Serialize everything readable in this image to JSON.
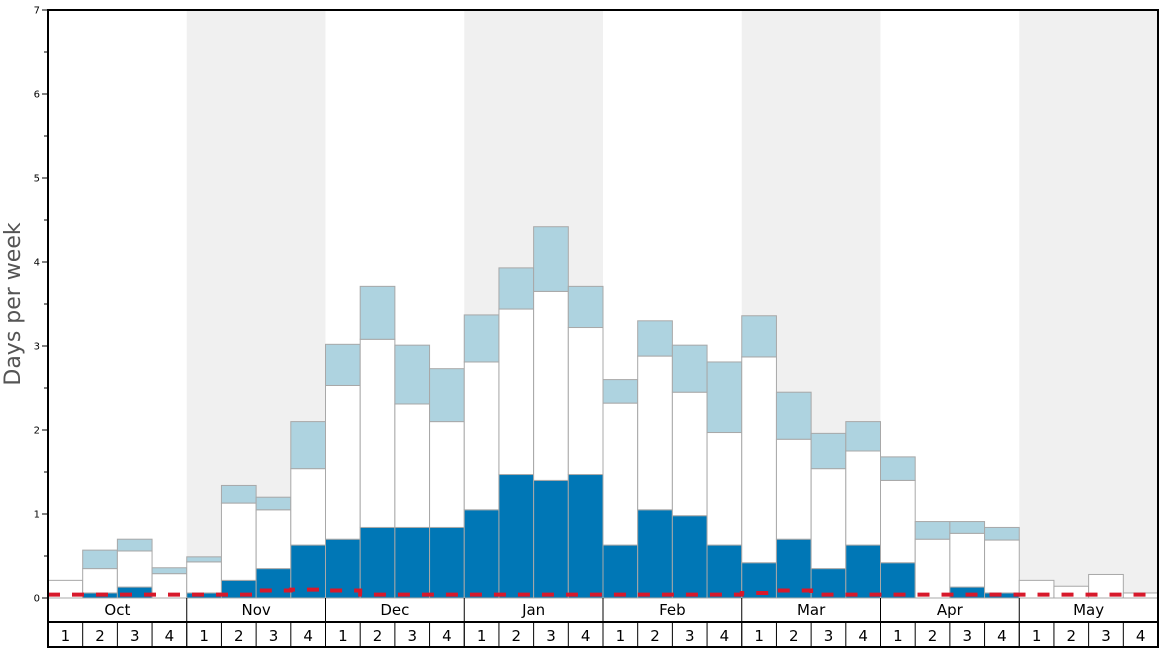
{
  "chart_data": {
    "type": "bar",
    "ylabel": "Days per week",
    "ylim": [
      0,
      7
    ],
    "yticks": [
      "0",
      "1",
      "2",
      "3",
      "4",
      "5",
      "6",
      "7"
    ],
    "months": [
      "Oct",
      "Nov",
      "Dec",
      "Jan",
      "Feb",
      "Mar",
      "Apr",
      "May"
    ],
    "week_labels": [
      "1",
      "2",
      "3",
      "4"
    ],
    "stacked": true,
    "series": [
      {
        "values": [
          0.0,
          0.06,
          0.13,
          0.0,
          0.06,
          0.21,
          0.35,
          0.63,
          0.7,
          0.84,
          0.84,
          0.84,
          1.05,
          1.47,
          1.4,
          1.47,
          0.63,
          1.05,
          0.98,
          0.63,
          0.42,
          0.7,
          0.35,
          0.63,
          0.42,
          0.0,
          0.13,
          0.06,
          0.0,
          0.0,
          0.0,
          0.0
        ]
      },
      {
        "values": [
          0.21,
          0.29,
          0.43,
          0.29,
          0.37,
          0.92,
          0.7,
          0.91,
          1.83,
          2.24,
          1.47,
          1.26,
          1.76,
          1.97,
          2.25,
          1.75,
          1.69,
          1.83,
          1.47,
          1.34,
          2.45,
          1.19,
          1.19,
          1.12,
          0.98,
          0.7,
          0.64,
          0.63,
          0.21,
          0.14,
          0.28,
          0.06
        ]
      },
      {
        "values": [
          0.0,
          0.22,
          0.14,
          0.07,
          0.06,
          0.21,
          0.15,
          0.56,
          0.49,
          0.63,
          0.7,
          0.63,
          0.56,
          0.49,
          0.77,
          0.49,
          0.28,
          0.42,
          0.56,
          0.84,
          0.49,
          0.56,
          0.42,
          0.35,
          0.28,
          0.21,
          0.14,
          0.15,
          0.0,
          0.0,
          0.0,
          0.0
        ]
      }
    ],
    "average_line": [
      0.04,
      0.04,
      0.04,
      0.04,
      0.04,
      0.04,
      0.09,
      0.1,
      0.09,
      0.04,
      0.04,
      0.04,
      0.04,
      0.04,
      0.04,
      0.04,
      0.04,
      0.04,
      0.04,
      0.04,
      0.06,
      0.09,
      0.04,
      0.04,
      0.04,
      0.04,
      0.04,
      0.04,
      0.04,
      0.04,
      0.04,
      0.04
    ],
    "grid": false,
    "month_band_colors": [
      "#ffffff",
      "#f0f0f0"
    ],
    "colors": {
      "series1": "#0077b6",
      "series2": "#ffffff",
      "series3": "#aed3e0",
      "bar_edge": "#a8a8a8",
      "average_line": "#d7192b"
    }
  }
}
